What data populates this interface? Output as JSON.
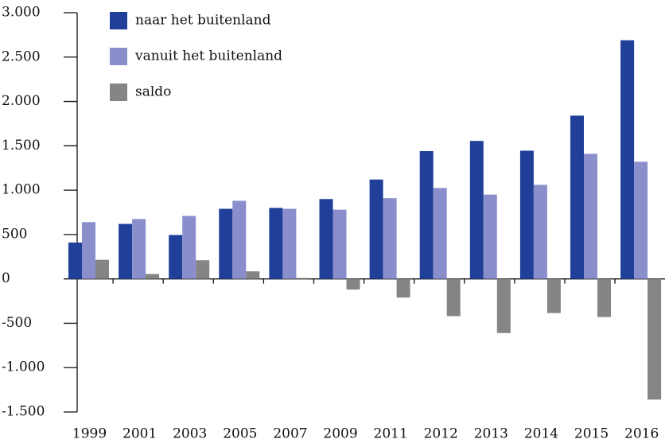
{
  "chart_data": {
    "type": "bar",
    "categories": [
      "1999",
      "2001",
      "2003",
      "2005",
      "2007",
      "2009",
      "2011",
      "2012",
      "2013",
      "2014",
      "2015",
      "2016"
    ],
    "series": [
      {
        "name": "naar het buitenland",
        "color": "#1f3f99",
        "values": [
          410,
          620,
          495,
          790,
          800,
          900,
          1120,
          1440,
          1555,
          1445,
          1840,
          2690
        ]
      },
      {
        "name": "vanuit het buitenland",
        "color": "#8a8fcc",
        "values": [
          640,
          675,
          710,
          880,
          790,
          780,
          910,
          1025,
          950,
          1060,
          1410,
          1320
        ]
      },
      {
        "name": "saldo",
        "color": "#858585",
        "values": [
          215,
          55,
          210,
          85,
          10,
          -120,
          -210,
          -420,
          -610,
          -385,
          -430,
          -1360
        ]
      }
    ],
    "ylim": [
      -1500,
      3000
    ],
    "yticks": [
      {
        "value": -1500,
        "label": "-1.500"
      },
      {
        "value": -1000,
        "label": "-1.000"
      },
      -500,
      0,
      500,
      {
        "value": 1000,
        "label": "1.000"
      },
      {
        "value": 1500,
        "label": "1.500"
      },
      {
        "value": 2000,
        "label": "2.000"
      },
      {
        "value": 2500,
        "label": "2.500"
      },
      {
        "value": 3000,
        "label": "3.000"
      }
    ],
    "legend": "top-left"
  }
}
